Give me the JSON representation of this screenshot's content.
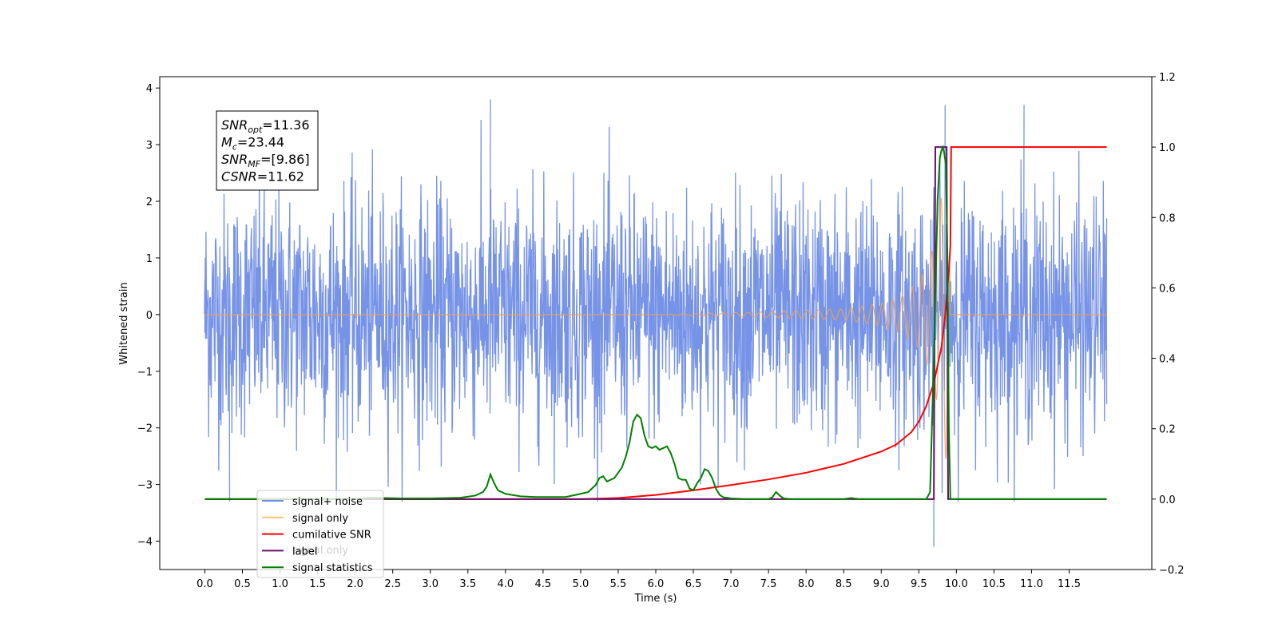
{
  "chart_data": {
    "type": "line",
    "xlabel": "Time (s)",
    "ylabel": "Whitened strain",
    "xlim": [
      -0.6,
      12.6
    ],
    "ylim_left": [
      -4.5,
      4.2
    ],
    "ylim_right": [
      -0.2,
      1.2
    ],
    "x_ticks": [
      "0.0",
      "0.5",
      "1.0",
      "1.5",
      "2.0",
      "2.5",
      "3.0",
      "3.5",
      "4.0",
      "4.5",
      "5.0",
      "5.5",
      "6.0",
      "6.5",
      "7.0",
      "7.5",
      "8.0",
      "8.5",
      "9.0",
      "9.5",
      "10.0",
      "10.5",
      "11.0",
      "11.5"
    ],
    "y_ticks_left": [
      "4",
      "3",
      "2",
      "1",
      "0",
      "−1",
      "−2",
      "−3",
      "−4"
    ],
    "y_ticks_right": [
      "1.2",
      "1.0",
      "0.8",
      "0.6",
      "0.4",
      "0.2",
      "0.0",
      "−0.2"
    ],
    "annotation": {
      "lines": [
        {
          "sym": "SNR",
          "sub": "opt",
          "val": "=11.36"
        },
        {
          "sym": "M",
          "sub": "c",
          "val": "=23.44"
        },
        {
          "sym": "SNR",
          "sub": "MF",
          "val": "=[9.86]"
        },
        {
          "sym": "CSNR",
          "sub": "",
          "val": "=11.62"
        }
      ]
    },
    "legend": {
      "placement": "lower-left",
      "entries": [
        {
          "label": "signal+ noise",
          "color": "#6f8de6"
        },
        {
          "label": "signal only",
          "color": "#ffc36b"
        },
        {
          "label": "cumilative SNR",
          "color": "#ff0000"
        },
        {
          "label": "label",
          "color": "#6a0d6a"
        },
        {
          "label": "signal statistics",
          "color": "#008000"
        }
      ],
      "hidden_text": "signal only"
    },
    "series": [
      {
        "name": "signal+ noise",
        "axis": "left",
        "color": "#6f8de6",
        "x_range": [
          0.0,
          12.0
        ],
        "description_points": [
          [
            0.0,
            0.6
          ],
          [
            0.33,
            -3.3
          ],
          [
            3.8,
            3.8
          ],
          [
            9.7,
            -4.1
          ],
          [
            9.85,
            3.7
          ],
          [
            10.9,
            3.7
          ],
          [
            12.0,
            1.7
          ]
        ]
      },
      {
        "name": "signal only",
        "axis": "left",
        "color": "#f0a050",
        "envelope": [
          [
            0.0,
            0.0
          ],
          [
            6.0,
            0.0
          ],
          [
            7.5,
            0.05
          ],
          [
            8.5,
            0.1
          ],
          [
            9.0,
            0.2
          ],
          [
            9.3,
            0.35
          ],
          [
            9.5,
            0.6
          ],
          [
            9.65,
            1.0
          ],
          [
            9.75,
            1.6
          ],
          [
            9.82,
            2.3
          ],
          [
            9.88,
            2.7
          ],
          [
            9.92,
            0.0
          ],
          [
            12.0,
            0.0
          ]
        ]
      },
      {
        "name": "cumilative SNR",
        "axis": "right",
        "color": "#ff0000",
        "x": [
          0.0,
          5.0,
          5.5,
          6.0,
          6.5,
          7.0,
          7.5,
          8.0,
          8.5,
          9.0,
          9.2,
          9.4,
          9.5,
          9.6,
          9.7,
          9.8,
          9.85,
          9.9,
          9.92,
          9.93,
          12.0
        ],
        "y": [
          0.0,
          0.0,
          0.003,
          0.012,
          0.025,
          0.04,
          0.056,
          0.075,
          0.1,
          0.135,
          0.155,
          0.19,
          0.22,
          0.265,
          0.33,
          0.43,
          0.52,
          0.65,
          0.72,
          1.0,
          1.0
        ]
      },
      {
        "name": "label",
        "axis": "right",
        "color": "#6a0d6a",
        "x": [
          0.0,
          9.7,
          9.72,
          9.87,
          9.89,
          12.0
        ],
        "y": [
          0.0,
          0.0,
          1.0,
          1.0,
          0.0,
          0.0
        ]
      },
      {
        "name": "signal statistics",
        "axis": "right",
        "color": "#008000",
        "x": [
          0.0,
          1.0,
          2.0,
          2.2,
          2.4,
          2.6,
          3.0,
          3.4,
          3.6,
          3.7,
          3.75,
          3.8,
          3.85,
          3.9,
          4.0,
          4.2,
          4.4,
          4.6,
          4.8,
          5.0,
          5.1,
          5.2,
          5.25,
          5.3,
          5.35,
          5.4,
          5.45,
          5.5,
          5.55,
          5.6,
          5.65,
          5.7,
          5.75,
          5.8,
          5.85,
          5.9,
          5.95,
          6.0,
          6.05,
          6.1,
          6.15,
          6.2,
          6.25,
          6.3,
          6.35,
          6.4,
          6.45,
          6.5,
          6.55,
          6.6,
          6.65,
          6.7,
          6.75,
          6.8,
          6.85,
          6.9,
          7.0,
          7.2,
          7.5,
          7.55,
          7.6,
          7.65,
          7.7,
          7.8,
          8.0,
          8.5,
          8.6,
          8.7,
          9.0,
          9.6,
          9.65,
          9.7,
          9.75,
          9.78,
          9.8,
          9.82,
          9.84,
          9.86,
          9.88,
          9.9,
          9.92,
          12.0
        ],
        "y": [
          0.0,
          0.0,
          0.0,
          0.004,
          0.003,
          0.002,
          0.002,
          0.004,
          0.01,
          0.02,
          0.035,
          0.07,
          0.045,
          0.025,
          0.015,
          0.008,
          0.006,
          0.006,
          0.006,
          0.015,
          0.02,
          0.04,
          0.06,
          0.065,
          0.05,
          0.055,
          0.06,
          0.075,
          0.09,
          0.12,
          0.16,
          0.22,
          0.24,
          0.23,
          0.18,
          0.15,
          0.145,
          0.15,
          0.14,
          0.145,
          0.15,
          0.13,
          0.1,
          0.06,
          0.055,
          0.055,
          0.03,
          0.025,
          0.045,
          0.06,
          0.085,
          0.08,
          0.06,
          0.03,
          0.012,
          0.005,
          0.002,
          0.0,
          0.0,
          0.005,
          0.02,
          0.01,
          0.002,
          0.0,
          0.0,
          0.0,
          0.003,
          0.0,
          0.0,
          0.0,
          0.02,
          0.4,
          0.85,
          0.97,
          0.99,
          1.0,
          0.98,
          0.95,
          0.7,
          0.2,
          0.0,
          0.0
        ]
      }
    ]
  }
}
